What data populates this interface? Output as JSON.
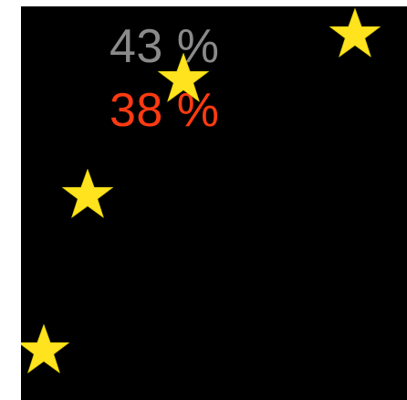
{
  "hud": {
    "stats": [
      {
        "label": "43 %",
        "color": "#8a8a8a"
      },
      {
        "label": "38 %",
        "color": "#ff3a12"
      }
    ]
  },
  "scene": {
    "background": "#000000",
    "stars": [
      {
        "icon": "star-icon",
        "color": "#ffe31f"
      },
      {
        "icon": "star-icon",
        "color": "#ffe31f"
      },
      {
        "icon": "star-icon",
        "color": "#ffe31f"
      },
      {
        "icon": "star-icon",
        "color": "#ffe31f"
      }
    ]
  }
}
